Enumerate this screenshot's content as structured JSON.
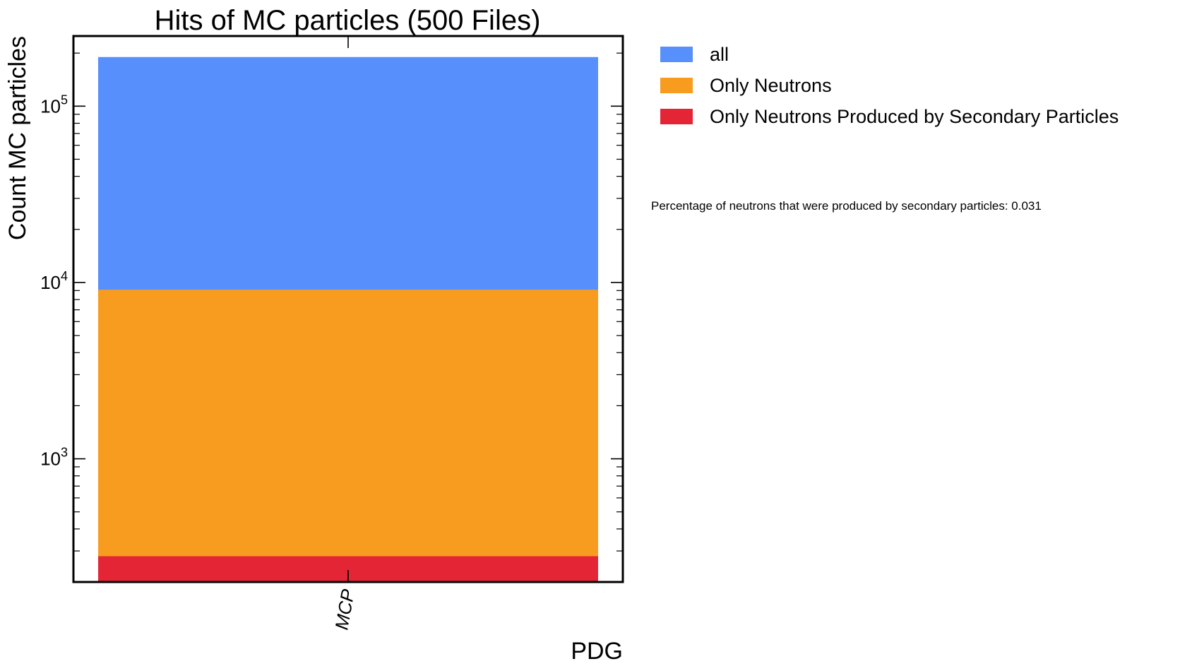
{
  "chart_data": {
    "type": "bar",
    "title": "Hits of MC particles (500 Files)",
    "xlabel": "PDG",
    "ylabel": "Count MC particles",
    "yscale": "log",
    "ylim": [
      200,
      250000
    ],
    "yticks": [
      {
        "value": 1000,
        "base": "10",
        "exp": "3"
      },
      {
        "value": 10000,
        "base": "10",
        "exp": "4"
      },
      {
        "value": 100000,
        "base": "10",
        "exp": "5"
      }
    ],
    "categories": [
      "MCP"
    ],
    "series": [
      {
        "name": "all",
        "color": "#5790fc",
        "values": [
          190000
        ]
      },
      {
        "name": "Only Neutrons",
        "color": "#f89c20",
        "values": [
          9100
        ]
      },
      {
        "name": "Only Neutrons Produced by Secondary Particles",
        "color": "#e42536",
        "values": [
          280
        ]
      }
    ],
    "legend_position": "outside-right",
    "grid": false,
    "annotation": "Percentage of neutrons that were produced by secondary particles: 0.031"
  }
}
